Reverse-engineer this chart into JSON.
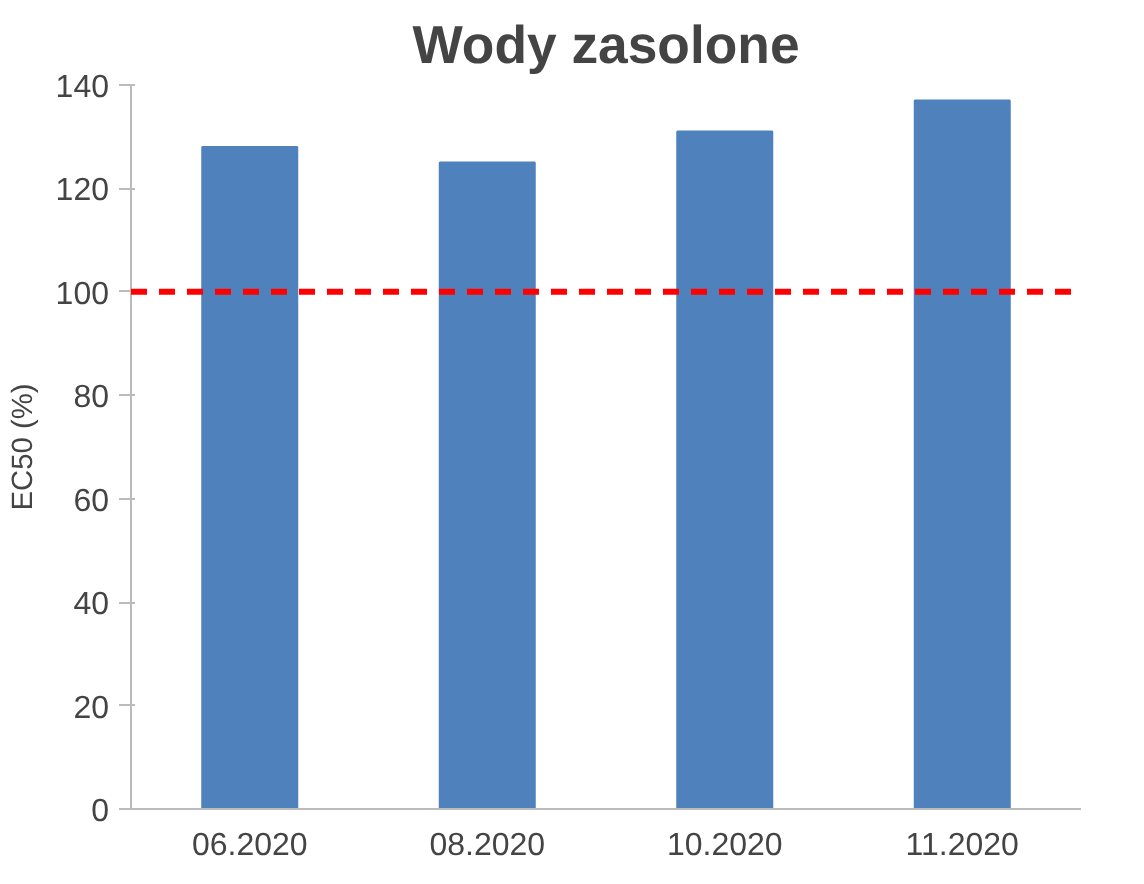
{
  "chart_data": {
    "type": "bar",
    "title": "Wody zasolone",
    "ylabel": "EC50 (%)",
    "categories": [
      "06.2020",
      "08.2020",
      "10.2020",
      "11.2020"
    ],
    "series": [
      {
        "color": "#4f81bd",
        "values": [
          128,
          125,
          131,
          137
        ]
      }
    ],
    "ylim": [
      0,
      140
    ],
    "yticks": [
      0,
      20,
      40,
      60,
      80,
      100,
      120,
      140
    ],
    "grid": false,
    "ref_lines": [
      {
        "axis": "y",
        "value": 100,
        "color": "#ff0000",
        "line_style": "dashed"
      }
    ]
  }
}
